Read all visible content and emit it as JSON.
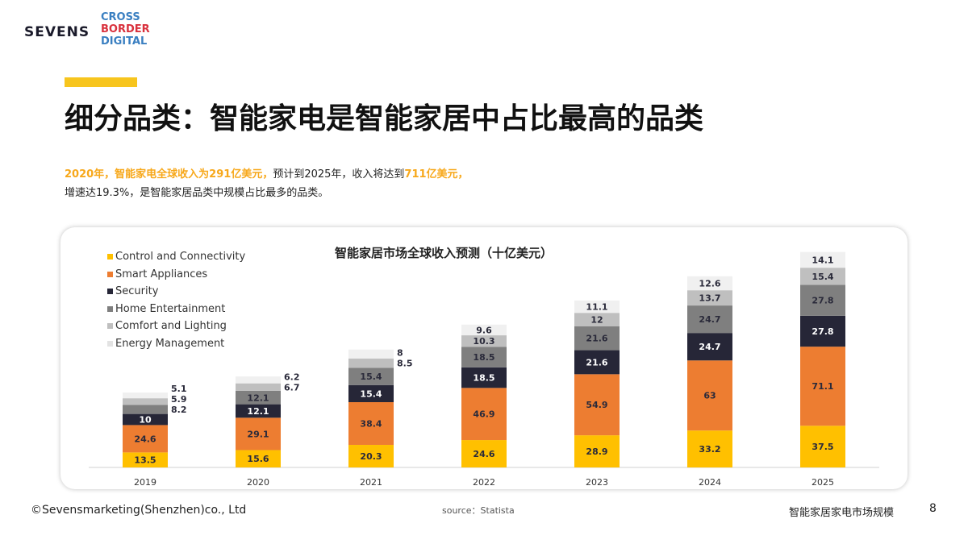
{
  "logo": {
    "brand": "SEVENS",
    "partner": [
      "CROSS",
      "BORDER",
      "DIGITAL"
    ]
  },
  "header": {
    "title": "细分品类：智能家电是智能家居中占比最高的品类"
  },
  "subtitle": {
    "part1": "2020年，智能家电全球收入为291亿美元，",
    "part2": "预计到2025年，收入将达到",
    "part3": "711亿美元，",
    "line2": "增速达19.3%，是智能家居品类中规模占比最多的品类。"
  },
  "chart_data": {
    "type": "bar",
    "stacked": true,
    "title": "智能家居市场全球收入预测（十亿美元）",
    "categories": [
      "2019",
      "2020",
      "2021",
      "2022",
      "2023",
      "2024",
      "2025"
    ],
    "legend_position": "top-left",
    "grid": false,
    "series": [
      {
        "name": "Control and Connectivity",
        "color": "#ffc000",
        "values": [
          13.5,
          15.6,
          20.3,
          24.6,
          28.9,
          33.2,
          37.5
        ]
      },
      {
        "name": "Smart Appliances",
        "color": "#ed7d31",
        "values": [
          24.6,
          29.1,
          38.4,
          46.9,
          54.9,
          63,
          71.1
        ]
      },
      {
        "name": "Security",
        "color": "#262637",
        "values": [
          10,
          12.1,
          15.4,
          18.5,
          21.6,
          24.7,
          27.8
        ]
      },
      {
        "name": "Home Entertainment",
        "color": "#7f7f7f",
        "values": [
          8.2,
          12.1,
          15.4,
          18.5,
          21.6,
          24.7,
          27.8
        ]
      },
      {
        "name": "Comfort and Lighting",
        "color": "#bfbfbf",
        "values": [
          5.9,
          6.7,
          8.5,
          10.3,
          12,
          13.7,
          15.4
        ]
      },
      {
        "name": "Energy Management",
        "color": "#f0f0f0",
        "values": [
          5.1,
          6.2,
          8,
          9.6,
          11.1,
          12.6,
          14.1
        ]
      }
    ]
  },
  "footer": {
    "copyright": "©Sevensmarketing(Shenzhen)co., Ltd",
    "source": "source：Statista",
    "section": "智能家居家电市场规模",
    "page": "8"
  }
}
